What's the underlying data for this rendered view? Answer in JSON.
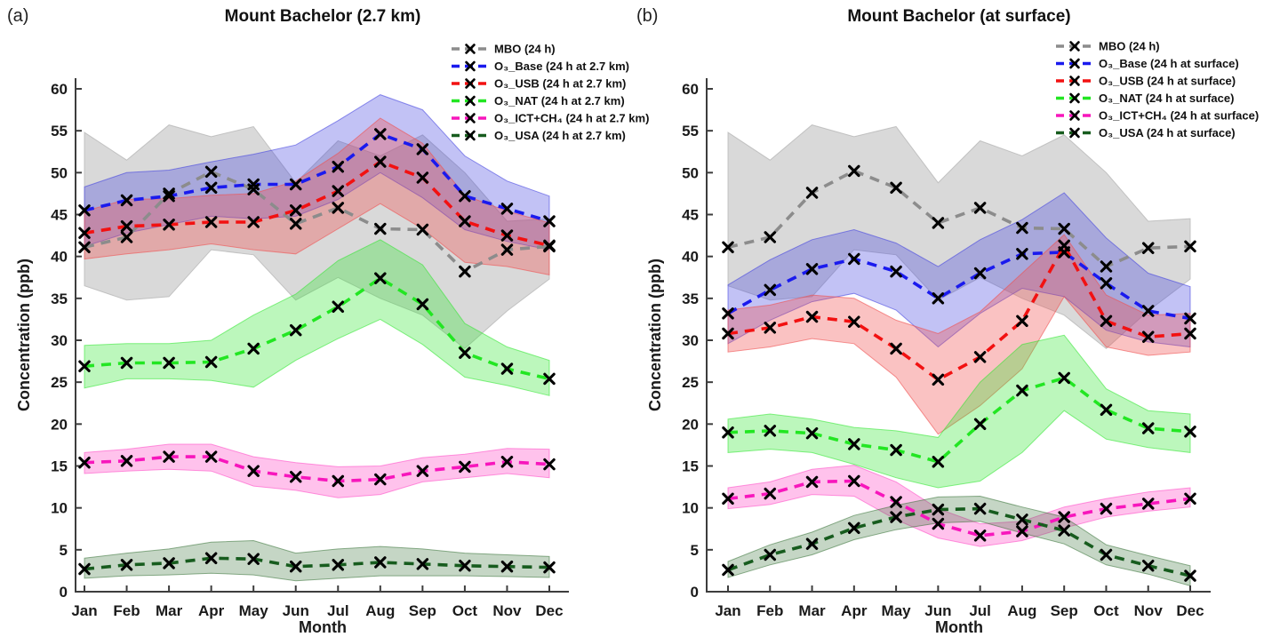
{
  "figure": {
    "background": "#ffffff"
  },
  "chart_data": [
    {
      "type": "line",
      "panel_label": "(a)",
      "title": "Mount Bachelor (2.7 km)",
      "xlabel": "Month",
      "ylabel": "Concentration (ppb)",
      "categories": [
        "Jan",
        "Feb",
        "Mar",
        "Apr",
        "May",
        "Jun",
        "Jul",
        "Aug",
        "Sep",
        "Oct",
        "Nov",
        "Dec"
      ],
      "ylim": [
        0,
        62
      ],
      "yticks": [
        0,
        5,
        10,
        15,
        20,
        25,
        30,
        35,
        40,
        45,
        50,
        55,
        60
      ],
      "grid": false,
      "legend_position": "inside-top-right",
      "line_style": "dashed-with-x-markers",
      "marker_color": "#000000",
      "series": [
        {
          "key": "mbo",
          "name": "MBO (24 h)",
          "color": "#8c8c8c",
          "band_fill": "#b4b4b4",
          "band_opacity": 0.5,
          "values": [
            41.1,
            42.3,
            47.5,
            50.1,
            48.0,
            43.9,
            45.8,
            43.3,
            43.2,
            38.2,
            40.8,
            41.2
          ],
          "band_low": [
            36.5,
            34.8,
            35.2,
            40.8,
            40.2,
            34.8,
            37.5,
            35.0,
            33.0,
            29.0,
            33.5,
            37.3
          ],
          "band_high": [
            54.8,
            51.5,
            55.7,
            54.3,
            55.5,
            48.8,
            53.8,
            52.0,
            54.5,
            50.0,
            44.2,
            44.5
          ]
        },
        {
          "key": "o3-base",
          "name": "O₃_Base (24 h at 2.7 km)",
          "color": "#1a1aee",
          "band_fill": "#4040e0",
          "band_opacity": 0.32,
          "values": [
            45.5,
            46.7,
            47.2,
            48.2,
            48.6,
            48.6,
            50.7,
            54.6,
            52.8,
            47.2,
            45.7,
            44.2
          ],
          "band_low": [
            41.2,
            42.8,
            43.8,
            44.8,
            44.5,
            44.8,
            46.8,
            50.0,
            47.0,
            43.2,
            41.8,
            40.8
          ],
          "band_high": [
            48.3,
            50.0,
            50.3,
            51.3,
            52.2,
            53.3,
            56.2,
            59.3,
            57.5,
            52.0,
            49.0,
            47.2
          ]
        },
        {
          "key": "o3-usb",
          "name": "O₃_USB (24 h at 2.7 km)",
          "color": "#f21111",
          "band_fill": "#f05050",
          "band_opacity": 0.35,
          "values": [
            42.8,
            43.6,
            43.8,
            44.1,
            44.1,
            45.5,
            47.8,
            51.3,
            49.4,
            44.2,
            42.5,
            41.3
          ],
          "band_low": [
            39.7,
            40.3,
            40.8,
            41.5,
            40.8,
            40.3,
            43.3,
            46.3,
            43.3,
            39.3,
            38.8,
            37.8
          ],
          "band_high": [
            45.4,
            46.8,
            46.9,
            47.3,
            47.5,
            49.0,
            52.3,
            56.5,
            53.5,
            47.3,
            45.4,
            44.0
          ]
        },
        {
          "key": "o3-nat",
          "name": "O₃_NAT (24 h at 2.7 km)",
          "color": "#22e622",
          "band_fill": "#30e630",
          "band_opacity": 0.32,
          "values": [
            26.9,
            27.3,
            27.3,
            27.4,
            29.0,
            31.2,
            34.0,
            37.4,
            34.3,
            28.5,
            26.6,
            25.4
          ],
          "band_low": [
            24.3,
            25.4,
            25.4,
            25.2,
            24.4,
            27.6,
            30.2,
            32.5,
            29.5,
            25.6,
            24.6,
            23.4
          ],
          "band_high": [
            29.4,
            29.6,
            29.6,
            30.0,
            33.0,
            35.5,
            39.5,
            42.0,
            39.0,
            32.0,
            29.2,
            27.6
          ]
        },
        {
          "key": "o3-ict-ch4",
          "name": "O₃_ICT+CH₄ (24 h at 2.7 km)",
          "color": "#f716bc",
          "band_fill": "#ff50c8",
          "band_opacity": 0.35,
          "values": [
            15.4,
            15.6,
            16.1,
            16.1,
            14.4,
            13.7,
            13.2,
            13.4,
            14.4,
            14.9,
            15.5,
            15.2
          ],
          "band_low": [
            14.1,
            14.4,
            14.6,
            14.4,
            12.6,
            12.1,
            11.2,
            11.6,
            13.1,
            13.6,
            14.1,
            13.6
          ],
          "band_high": [
            16.6,
            17.0,
            17.6,
            17.6,
            16.1,
            15.4,
            14.9,
            15.0,
            16.0,
            16.4,
            17.1,
            17.0
          ]
        },
        {
          "key": "o3-usa",
          "name": "O₃_USA (24 h at 2.7 km)",
          "color": "#175c1e",
          "band_fill": "#2d6b2d",
          "band_opacity": 0.28,
          "values": [
            2.7,
            3.2,
            3.4,
            4.0,
            3.9,
            3.0,
            3.2,
            3.5,
            3.3,
            3.1,
            3.0,
            2.9
          ],
          "band_low": [
            1.6,
            1.9,
            2.0,
            2.2,
            2.0,
            1.3,
            1.6,
            1.9,
            1.9,
            1.9,
            1.8,
            1.7
          ],
          "band_high": [
            4.0,
            4.6,
            5.1,
            5.9,
            6.1,
            4.6,
            5.1,
            5.4,
            5.1,
            4.6,
            4.4,
            4.2
          ]
        }
      ]
    },
    {
      "type": "line",
      "panel_label": "(b)",
      "title": "Mount Bachelor (at surface)",
      "xlabel": "Month",
      "ylabel": "Concentration (ppb)",
      "categories": [
        "Jan",
        "Feb",
        "Mar",
        "Apr",
        "May",
        "Jun",
        "Jul",
        "Aug",
        "Sep",
        "Oct",
        "Nov",
        "Dec"
      ],
      "ylim": [
        0,
        62
      ],
      "yticks": [
        0,
        5,
        10,
        15,
        20,
        25,
        30,
        35,
        40,
        45,
        50,
        55,
        60
      ],
      "grid": false,
      "legend_position": "inside-top-right",
      "line_style": "dashed-with-x-markers",
      "marker_color": "#000000",
      "series": [
        {
          "key": "mbo",
          "name": "MBO (24 h)",
          "color": "#8c8c8c",
          "band_fill": "#b4b4b4",
          "band_opacity": 0.5,
          "values": [
            41.1,
            42.3,
            47.6,
            50.2,
            48.2,
            44.0,
            45.8,
            43.4,
            43.3,
            38.8,
            41.0,
            41.2
          ],
          "band_low": [
            36.5,
            34.8,
            35.2,
            40.8,
            40.2,
            34.8,
            37.5,
            35.0,
            33.0,
            29.0,
            33.5,
            37.3
          ],
          "band_high": [
            54.8,
            51.5,
            55.7,
            54.3,
            55.5,
            48.8,
            53.8,
            52.0,
            54.5,
            50.0,
            44.2,
            44.5
          ]
        },
        {
          "key": "o3-base",
          "name": "O₃_Base (24 h at surface)",
          "color": "#1a1aee",
          "band_fill": "#4040e0",
          "band_opacity": 0.32,
          "values": [
            33.2,
            36.0,
            38.5,
            39.7,
            38.2,
            35.0,
            38.0,
            40.3,
            40.5,
            36.8,
            33.5,
            32.6
          ],
          "band_low": [
            29.6,
            32.4,
            34.6,
            35.6,
            33.6,
            29.2,
            33.2,
            36.2,
            35.2,
            31.2,
            29.8,
            29.2
          ],
          "band_high": [
            36.6,
            39.6,
            42.0,
            43.2,
            41.6,
            38.8,
            42.0,
            44.4,
            47.6,
            42.2,
            38.0,
            36.4
          ]
        },
        {
          "key": "o3-usb",
          "name": "O₃_USB (24 h at surface)",
          "color": "#f21111",
          "band_fill": "#f05050",
          "band_opacity": 0.35,
          "values": [
            30.8,
            31.5,
            32.8,
            32.2,
            29.0,
            25.3,
            28.0,
            32.3,
            41.3,
            32.3,
            30.4,
            30.8
          ],
          "band_low": [
            28.6,
            29.2,
            30.2,
            29.6,
            25.6,
            18.8,
            22.2,
            26.6,
            35.2,
            29.2,
            28.2,
            28.6
          ],
          "band_high": [
            33.6,
            34.2,
            35.4,
            35.0,
            32.4,
            30.8,
            33.4,
            38.0,
            42.6,
            35.4,
            33.0,
            33.2
          ]
        },
        {
          "key": "o3-nat",
          "name": "O₃_NAT (24 h at surface)",
          "color": "#22e622",
          "band_fill": "#30e630",
          "band_opacity": 0.32,
          "values": [
            19.0,
            19.2,
            18.9,
            17.6,
            16.9,
            15.5,
            20.0,
            24.0,
            25.5,
            21.7,
            19.5,
            19.1
          ],
          "band_low": [
            16.6,
            17.0,
            16.6,
            15.2,
            13.6,
            12.4,
            13.2,
            16.6,
            21.6,
            18.2,
            17.2,
            16.6
          ],
          "band_high": [
            20.6,
            21.2,
            20.6,
            19.6,
            19.2,
            18.4,
            25.0,
            29.5,
            30.6,
            24.2,
            21.6,
            21.2
          ]
        },
        {
          "key": "o3-ict-ch4",
          "name": "O₃_ICT+CH₄ (24 h at surface)",
          "color": "#f716bc",
          "band_fill": "#ff50c8",
          "band_opacity": 0.35,
          "values": [
            11.1,
            11.7,
            13.1,
            13.2,
            10.7,
            8.1,
            6.7,
            7.2,
            8.9,
            9.9,
            10.5,
            11.1
          ],
          "band_low": [
            9.9,
            10.4,
            11.6,
            11.4,
            8.6,
            6.4,
            5.4,
            6.1,
            7.6,
            8.9,
            9.6,
            10.1
          ],
          "band_high": [
            12.4,
            13.1,
            14.6,
            15.1,
            13.1,
            9.9,
            8.1,
            8.4,
            10.1,
            11.1,
            11.9,
            12.4
          ]
        },
        {
          "key": "o3-usa",
          "name": "O₃_USA (24 h at surface)",
          "color": "#175c1e",
          "band_fill": "#2d6b2d",
          "band_opacity": 0.28,
          "values": [
            2.6,
            4.4,
            5.7,
            7.6,
            8.9,
            9.8,
            9.9,
            8.6,
            7.3,
            4.4,
            3.1,
            1.9
          ],
          "band_low": [
            1.7,
            3.2,
            4.4,
            6.2,
            7.4,
            8.2,
            8.4,
            7.0,
            5.7,
            3.2,
            2.1,
            0.7
          ],
          "band_high": [
            3.6,
            5.6,
            7.1,
            9.1,
            10.3,
            11.3,
            11.4,
            10.1,
            8.9,
            5.6,
            4.3,
            3.1
          ]
        }
      ]
    }
  ]
}
